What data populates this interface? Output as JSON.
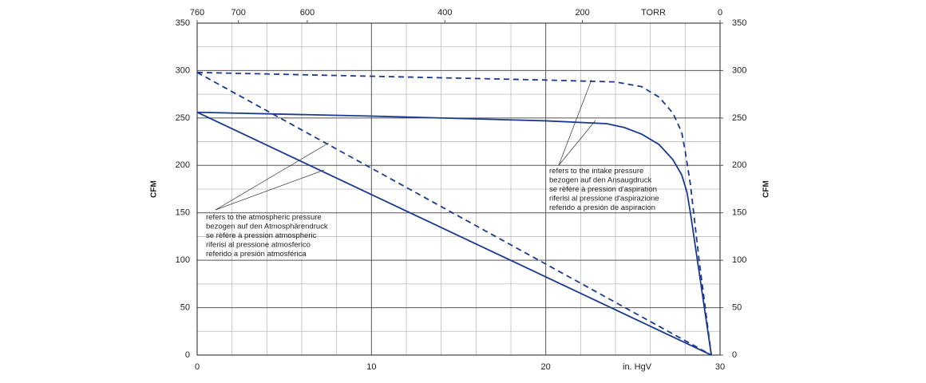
{
  "chart_data": {
    "type": "line",
    "x_label": "in. HgV",
    "x2_label": "TORR",
    "y_label": "CFM",
    "y2_label": "CFM",
    "xlim": [
      0,
      30
    ],
    "xticks": [
      0,
      10,
      20,
      30
    ],
    "xgrid": [
      2,
      4,
      6,
      8,
      12,
      14,
      16,
      18,
      22,
      24,
      26,
      28
    ],
    "x2lim": [
      760,
      0
    ],
    "x2ticks": [
      760,
      700,
      600,
      400,
      200,
      0
    ],
    "ylim": [
      0,
      350
    ],
    "yticks": [
      0,
      50,
      100,
      150,
      200,
      250,
      300,
      350
    ],
    "ygrid": [
      25,
      75,
      125,
      175,
      225,
      275,
      325
    ],
    "y2lim": [
      0,
      350
    ],
    "y2ticks": [
      0,
      50,
      100,
      150,
      200,
      250,
      300,
      350
    ],
    "grid": true,
    "series": [
      {
        "color": "#1a3a8f",
        "dash": false,
        "x": [
          0,
          10,
          20,
          23.5,
          24.5,
          25.5,
          26.5,
          27.3,
          27.8,
          28.1,
          28.3,
          29.5
        ],
        "values": [
          256,
          252,
          247,
          244,
          240,
          233,
          222,
          206,
          190,
          172,
          150,
          0
        ]
      },
      {
        "color": "#1a3a8f",
        "dash": true,
        "x": [
          0,
          10,
          20,
          24,
          25.5,
          26.5,
          27.3,
          27.8,
          28.0,
          28.3,
          28.8,
          29.5
        ],
        "values": [
          298,
          294,
          290,
          288,
          283,
          272,
          255,
          235,
          215,
          180,
          100,
          0
        ]
      },
      {
        "color": "#1a3a8f",
        "dash": false,
        "x": [
          0,
          29.5
        ],
        "values": [
          256,
          0
        ]
      },
      {
        "color": "#1a3a8f",
        "dash": true,
        "x": [
          0,
          29.5
        ],
        "values": [
          298,
          0
        ]
      }
    ],
    "annotations": [
      {
        "lines": [
          "refers to the atmospheric pressure",
          "bezogen auf den Atmosphärendruck",
          "se rèfère à pression atmospheric",
          "riferisi al pressione atmosferico",
          "referido a presión atmosférica"
        ]
      },
      {
        "lines": [
          "refers to the intake pressure",
          "bezogen auf den Ansaugdruck",
          "se rèfère à pression d'aspiration",
          "riferisi al pressione d'aspirazione",
          "referido a presión de aspiracion"
        ]
      }
    ]
  }
}
